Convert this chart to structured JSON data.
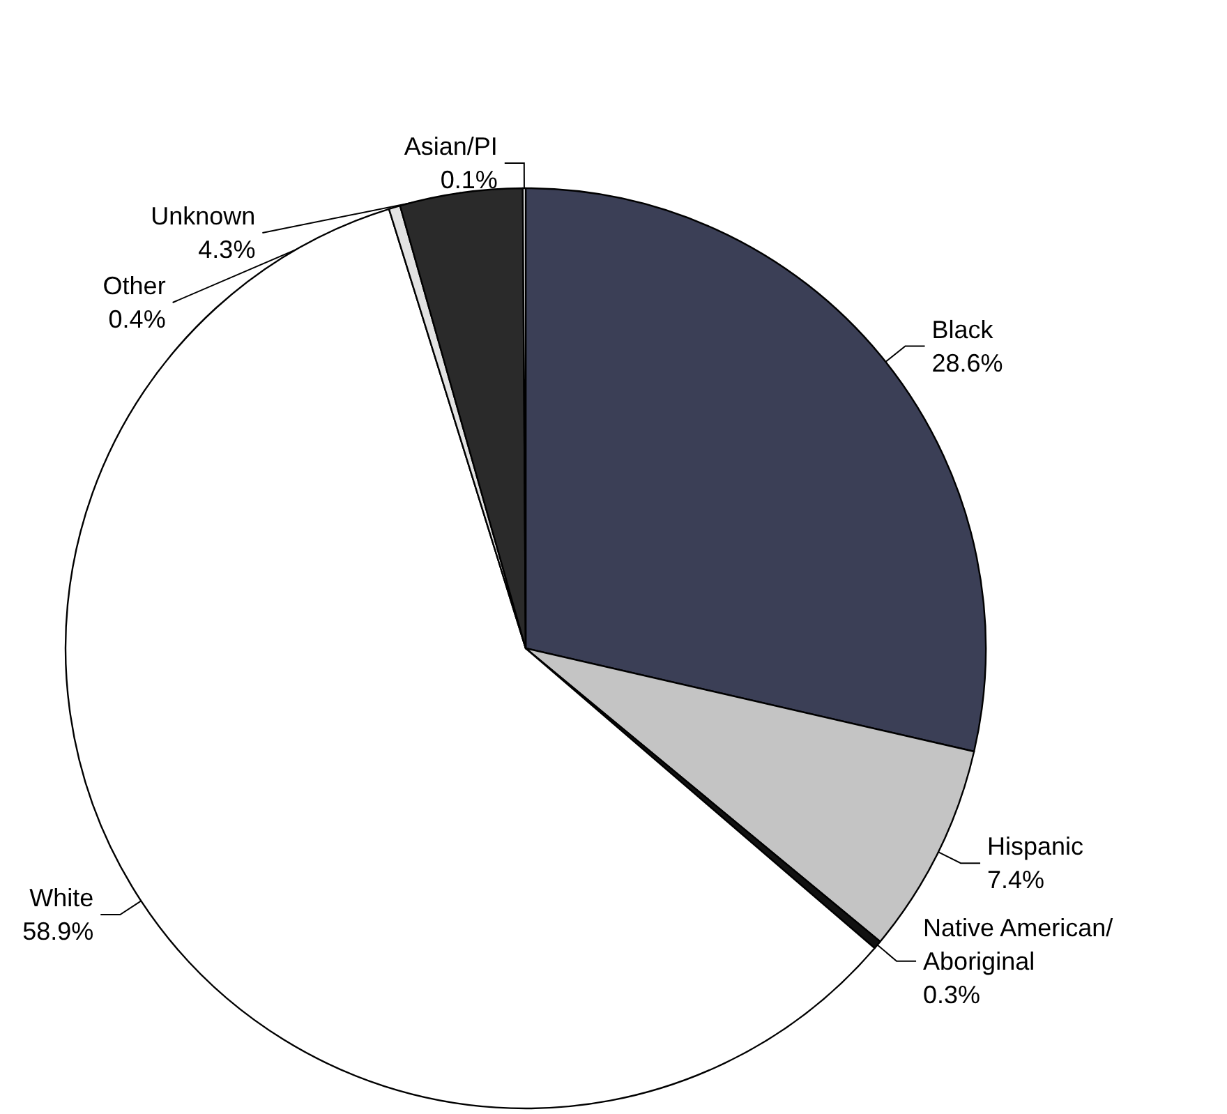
{
  "chart_data": {
    "type": "pie",
    "categories": [
      "Black",
      "Hispanic",
      "Native American/\nAboriginal",
      "White",
      "Other",
      "Unknown",
      "Asian/PI"
    ],
    "values": [
      28.6,
      7.4,
      0.3,
      58.9,
      0.4,
      4.3,
      0.1
    ],
    "value_labels": [
      "28.6%",
      "7.4%",
      "0.3%",
      "58.9%",
      "0.4%",
      "4.3%",
      "0.1%"
    ],
    "colors": [
      "#3b3f56",
      "#c4c4c4",
      "#111111",
      "#ffffff",
      "#e2e2e2",
      "#2a2a2a",
      "#f4f4f4"
    ]
  }
}
